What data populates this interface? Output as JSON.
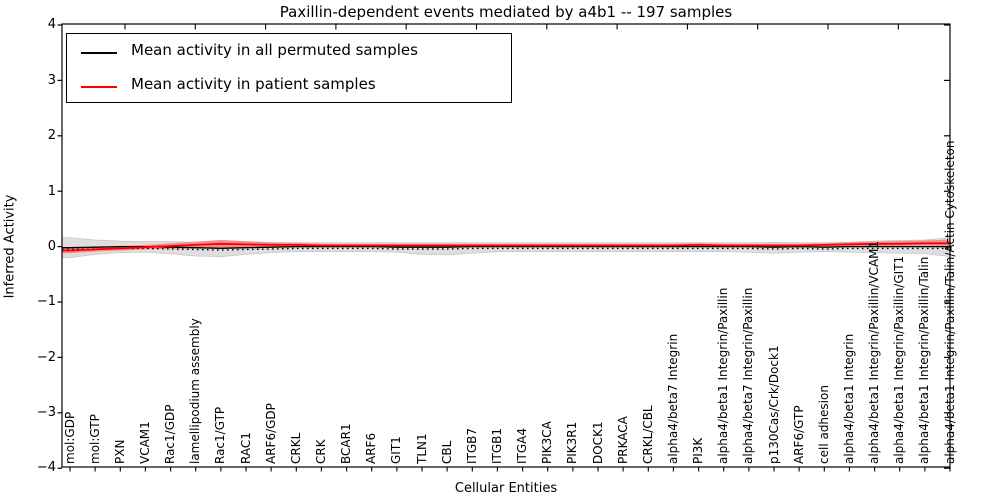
{
  "title": "Paxillin-dependent events mediated by a4b1 -- 197 samples",
  "axes": {
    "xlabel": "Cellular Entities",
    "ylabel": "Inferred Activity",
    "ytick_labels": [
      "4",
      "3",
      "2",
      "1",
      "0",
      "−1",
      "−2",
      "−3",
      "−4"
    ]
  },
  "legend": {
    "items": [
      {
        "label": "Mean activity in all permuted samples",
        "color": "#000000"
      },
      {
        "label": "Mean activity in patient samples",
        "color": "#ff0000"
      }
    ]
  },
  "colors": {
    "permuted_band": "#dedede",
    "permuted_band_edge": "#c4c4c4",
    "patient_band": "#f28e8e",
    "permuted_line": "#000000",
    "patient_line": "#ff0000",
    "frame": "#000000"
  },
  "chart_data": {
    "type": "line",
    "title": "Paxillin-dependent events mediated by a4b1 -- 197 samples",
    "xlabel": "Cellular Entities",
    "ylabel": "Inferred Activity",
    "ylim": [
      -4,
      4
    ],
    "yticks": [
      4,
      3,
      2,
      1,
      0,
      -1,
      -2,
      -3,
      -4
    ],
    "grid": false,
    "legend_position": "upper left",
    "categories": [
      "mol:GDP",
      "mol:GTP",
      "PXN",
      "VCAM1",
      "Rac1/GDP",
      "lamellipodium assembly",
      "Rac1/GTP",
      "RAC1",
      "ARF6/GDP",
      "CRKL",
      "CRK",
      "BCAR1",
      "ARF6",
      "GIT1",
      "TLN1",
      "CBL",
      "ITGB7",
      "ITGB1",
      "ITGA4",
      "PIK3CA",
      "PIK3R1",
      "DOCK1",
      "PRKACA",
      "CRKL/CBL",
      "alpha4/beta7 Integrin",
      "PI3K",
      "alpha4/beta1 Integrin/Paxillin",
      "alpha4/beta7 Integrin/Paxillin",
      "p130Cas/Crk/Dock1",
      "ARF6/GTP",
      "cell adhesion",
      "alpha4/beta1 Integrin",
      "alpha4/beta1 Integrin/Paxillin/VCAM1",
      "alpha4/beta1 Integrin/Paxillin/GIT1",
      "alpha4/beta1 Integrin/Paxillin/Talin",
      "alpha4/beta1 Integrin/Paxillin/Talin/Actin Cytoskeleton"
    ],
    "series": [
      {
        "name": "Mean activity in all permuted samples",
        "color": "#000000",
        "values": [
          -0.02,
          -0.01,
          0.0,
          0.0,
          -0.01,
          -0.02,
          -0.03,
          -0.02,
          -0.01,
          0.0,
          0.0,
          0.0,
          0.0,
          -0.01,
          -0.01,
          -0.01,
          0.0,
          0.0,
          0.0,
          0.0,
          0.0,
          0.0,
          0.0,
          0.0,
          0.0,
          0.0,
          0.0,
          0.0,
          -0.01,
          0.0,
          -0.01,
          0.0,
          0.0,
          0.0,
          0.0,
          0.0
        ]
      },
      {
        "name": "Mean activity in patient samples",
        "color": "#ff0000",
        "values": [
          -0.07,
          -0.05,
          -0.03,
          -0.01,
          0.01,
          0.03,
          0.05,
          0.04,
          0.03,
          0.03,
          0.02,
          0.02,
          0.02,
          0.02,
          0.02,
          0.02,
          0.02,
          0.02,
          0.02,
          0.02,
          0.02,
          0.02,
          0.02,
          0.02,
          0.02,
          0.03,
          0.02,
          0.02,
          0.02,
          0.02,
          0.03,
          0.04,
          0.05,
          0.05,
          0.06,
          0.06
        ]
      }
    ],
    "bands": [
      {
        "name": "permuted-samples-range",
        "upper": [
          0.16,
          0.12,
          0.1,
          0.09,
          0.09,
          0.08,
          0.08,
          0.08,
          0.07,
          0.07,
          0.07,
          0.07,
          0.07,
          0.07,
          0.07,
          0.07,
          0.07,
          0.07,
          0.07,
          0.07,
          0.07,
          0.07,
          0.07,
          0.07,
          0.07,
          0.07,
          0.07,
          0.07,
          0.08,
          0.07,
          0.07,
          0.08,
          0.1,
          0.11,
          0.12,
          0.16
        ],
        "lower": [
          -0.2,
          -0.14,
          -0.11,
          -0.1,
          -0.13,
          -0.17,
          -0.18,
          -0.14,
          -0.11,
          -0.09,
          -0.09,
          -0.09,
          -0.09,
          -0.1,
          -0.14,
          -0.15,
          -0.12,
          -0.09,
          -0.09,
          -0.09,
          -0.09,
          -0.09,
          -0.09,
          -0.09,
          -0.09,
          -0.09,
          -0.09,
          -0.1,
          -0.12,
          -0.1,
          -0.09,
          -0.1,
          -0.11,
          -0.12,
          -0.13,
          -0.18
        ]
      },
      {
        "name": "patient-samples-range",
        "upper": [
          -0.02,
          -0.01,
          0.01,
          0.03,
          0.06,
          0.09,
          0.12,
          0.1,
          0.08,
          0.07,
          0.05,
          0.05,
          0.05,
          0.05,
          0.05,
          0.05,
          0.05,
          0.05,
          0.05,
          0.05,
          0.05,
          0.05,
          0.05,
          0.05,
          0.05,
          0.06,
          0.05,
          0.05,
          0.05,
          0.05,
          0.06,
          0.08,
          0.09,
          0.1,
          0.11,
          0.13
        ],
        "lower": [
          -0.12,
          -0.09,
          -0.07,
          -0.05,
          -0.04,
          -0.03,
          -0.02,
          -0.02,
          -0.02,
          -0.01,
          -0.01,
          -0.01,
          -0.01,
          -0.01,
          -0.01,
          -0.01,
          -0.01,
          -0.01,
          -0.01,
          -0.01,
          -0.01,
          -0.01,
          -0.01,
          -0.01,
          -0.01,
          0.0,
          -0.01,
          -0.01,
          -0.01,
          -0.01,
          0.0,
          0.0,
          0.01,
          0.01,
          0.02,
          0.01
        ]
      }
    ]
  }
}
